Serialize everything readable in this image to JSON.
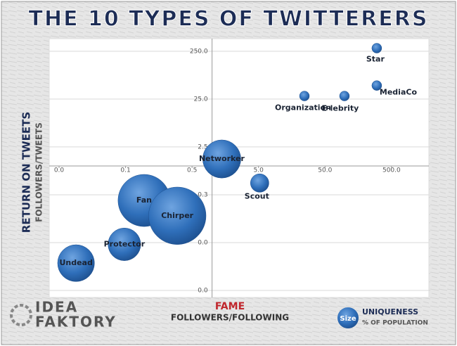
{
  "chart_data": {
    "type": "bubble",
    "title": "THE 10 TYPES OF TWITTERERS",
    "x_label": "FAME",
    "x_sublabel": "FOLLOWERS/FOLLOWING",
    "y_label": "RETURN ON TWEETS",
    "y_sublabel": "FOLLOWERS/TWEETS",
    "logo": [
      "IDEA",
      "FAKTORY"
    ],
    "legend": {
      "symbol": "Size",
      "title": "UNIQUENESS",
      "subtitle": "% OF POPULATION"
    },
    "x_log": true,
    "y_log": true,
    "grid": true,
    "color": "#2f6fba",
    "axis_cross": [
      1,
      1
    ],
    "xlim": [
      0.005,
      1500
    ],
    "ylim": [
      0.0025,
      400
    ],
    "xticks": [
      {
        "value": 0.005,
        "label": "0.0"
      },
      {
        "value": 0.05,
        "label": "0.1"
      },
      {
        "value": 0.5,
        "label": "0.5"
      },
      {
        "value": 5,
        "label": "5.0"
      },
      {
        "value": 50,
        "label": "50.0"
      },
      {
        "value": 500,
        "label": "500.0"
      }
    ],
    "yticks": [
      {
        "value": 0.0025,
        "label": "0.0"
      },
      {
        "value": 0.025,
        "label": "0.0"
      },
      {
        "value": 0.25,
        "label": "0.3"
      },
      {
        "value": 2.5,
        "label": "2.5"
      },
      {
        "value": 25,
        "label": "25.0"
      },
      {
        "value": 250,
        "label": "250.0"
      }
    ],
    "points": [
      {
        "label": "Star",
        "x": 300,
        "y": 290,
        "size": 1
      },
      {
        "label": "MediaCo",
        "x": 300,
        "y": 48,
        "size": 1
      },
      {
        "label": "E-lebrity",
        "x": 98,
        "y": 29,
        "size": 1
      },
      {
        "label": "Organization",
        "x": 24.5,
        "y": 29,
        "size": 1
      },
      {
        "label": "Networker",
        "x": 1.4,
        "y": 1.4,
        "size": 15
      },
      {
        "label": "Scout",
        "x": 5.2,
        "y": 0.44,
        "size": 3.5
      },
      {
        "label": "Fan",
        "x": 0.095,
        "y": 0.19,
        "size": 28
      },
      {
        "label": "Chirper",
        "x": 0.3,
        "y": 0.091,
        "size": 34
      },
      {
        "label": "Protector",
        "x": 0.048,
        "y": 0.023,
        "size": 11
      },
      {
        "label": "Undead",
        "x": 0.009,
        "y": 0.0093,
        "size": 14
      }
    ]
  }
}
